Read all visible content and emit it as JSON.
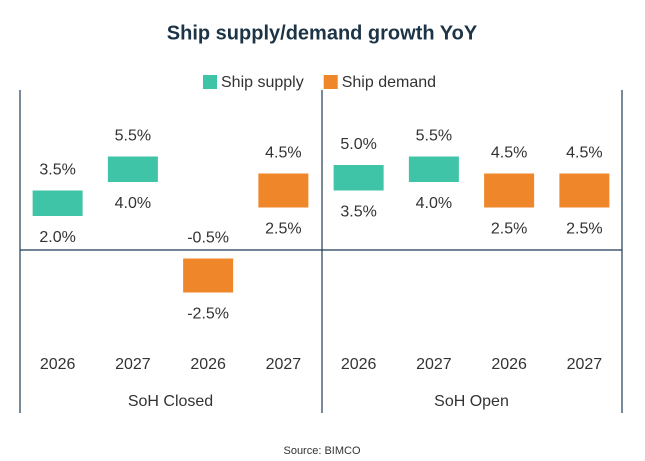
{
  "chart_data": {
    "type": "floating-bar",
    "title": "Ship supply/demand  growth YoY",
    "categories": [
      "2026",
      "2027",
      "2026",
      "2027",
      "2026",
      "2027",
      "2026",
      "2027"
    ],
    "groups": [
      "SoH Closed",
      "SoH Open"
    ],
    "series": [
      {
        "name": "Ship supply",
        "color": "#3fc4a8",
        "low": [
          2.0,
          4.0,
          null,
          null,
          3.5,
          4.0,
          null,
          null
        ],
        "high": [
          3.5,
          5.5,
          null,
          null,
          5.0,
          5.5,
          null,
          null
        ],
        "low_value_labels": [
          "2.0%",
          "4.0%",
          null,
          null,
          "3.5%",
          "4.0%",
          null,
          null
        ],
        "high_value_labels": [
          "3.5%",
          "5.5%",
          null,
          null,
          "5.0%",
          "5.5%",
          null,
          null
        ]
      },
      {
        "name": "Ship demand",
        "color": "#f0862a",
        "low": [
          null,
          null,
          -2.5,
          2.5,
          null,
          null,
          2.5,
          2.5
        ],
        "high": [
          null,
          null,
          -0.5,
          4.5,
          null,
          null,
          4.5,
          4.5
        ],
        "low_value_labels": [
          null,
          null,
          "-2.5%",
          "2.5%",
          null,
          null,
          "2.5%",
          "2.5%"
        ],
        "high_value_labels": [
          null,
          null,
          "-0.5%",
          "4.5%",
          null,
          null,
          "4.5%",
          "4.5%"
        ]
      }
    ],
    "source": "Source: BIMCO"
  }
}
